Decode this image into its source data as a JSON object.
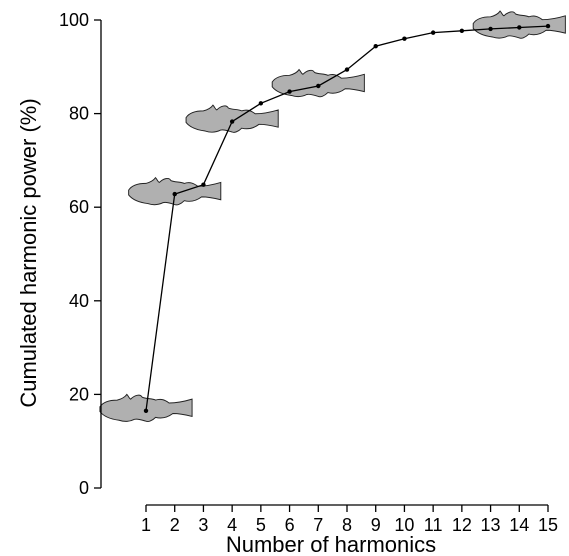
{
  "chart_data": {
    "type": "line",
    "title": "",
    "xlabel": "Number of harmonics",
    "ylabel": "Cumulated harmonic power (%)",
    "x": [
      1,
      2,
      3,
      4,
      5,
      6,
      7,
      8,
      9,
      10,
      11,
      12,
      13,
      14,
      15
    ],
    "x_ticks": [
      "1",
      "2",
      "3",
      "4",
      "5",
      "6",
      "7",
      "8",
      "9",
      "10",
      "11",
      "12",
      "13",
      "14",
      "15"
    ],
    "y_ticks": [
      "0",
      "20",
      "40",
      "60",
      "80",
      "100"
    ],
    "xlim": [
      0,
      15.5
    ],
    "ylim": [
      0,
      100
    ],
    "grid": false,
    "series": [
      {
        "values": [
          16.5,
          62.8,
          64.8,
          78.3,
          82.2,
          84.7,
          85.9,
          89.4,
          94.4,
          96.0,
          97.3,
          97.7,
          98.1,
          98.4,
          98.7
        ]
      }
    ],
    "fish_outline_annotations_at_x": [
      1,
      2,
      4,
      7,
      14
    ],
    "colors": {
      "line": "#000000",
      "fish_fill": "#b0b0b0",
      "fish_outline": "#222222"
    }
  }
}
